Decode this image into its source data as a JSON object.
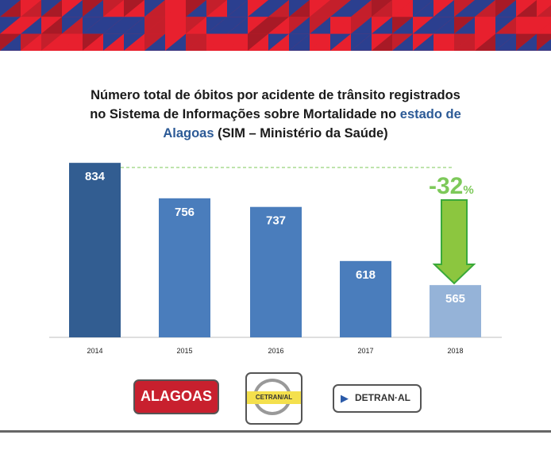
{
  "title": {
    "line1": "Número total de óbitos por acidente de trânsito registrados",
    "line2": "no Sistema de Informações sobre Mortalidade no ",
    "line2_highlight": "estado de",
    "line3_highlight": "Alagoas",
    "line3": " (SIM – Ministério da Saúde)"
  },
  "colors": {
    "bar_dark": "#325d91",
    "bar": "#4a7dbc",
    "bar_light": "#95b3d8",
    "accent_green": "#7dc95a",
    "highlight": "#2c5a96"
  },
  "chart_data": {
    "type": "bar",
    "categories": [
      "2014",
      "2015",
      "2016",
      "2017",
      "2018"
    ],
    "values": [
      834,
      756,
      737,
      618,
      565
    ],
    "ylim": [
      450,
      850
    ],
    "grid": false,
    "annotation": {
      "value": "-32",
      "unit": "%"
    }
  },
  "logos": {
    "alagoas": "ALAGOAS",
    "cetran": "CETRAN/AL",
    "detran": "DETRAN·AL"
  }
}
